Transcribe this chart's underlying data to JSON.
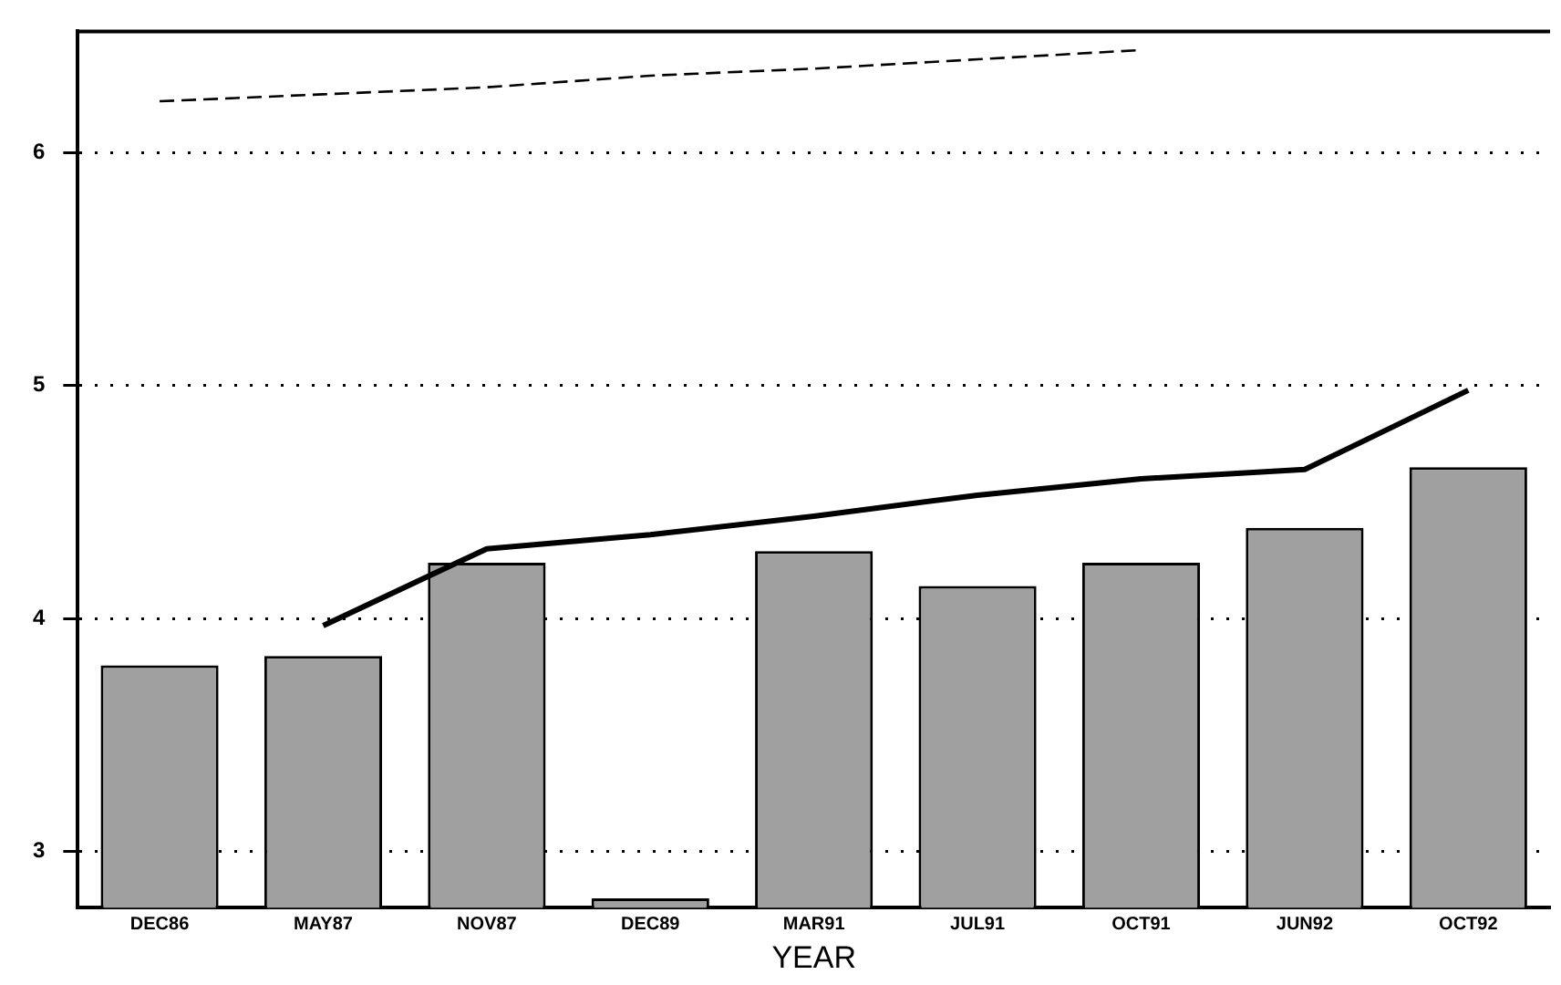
{
  "chart_data": {
    "type": "bar",
    "xlabel": "YEAR",
    "categories": [
      "DEC86",
      "MAY87",
      "NOV87",
      "DEC89",
      "MAR91",
      "JUL91",
      "OCT91",
      "JUN92",
      "OCT92"
    ],
    "series": [
      {
        "color": "#a0a0a0",
        "values": [
          3.8,
          3.84,
          4.24,
          2.8,
          4.29,
          4.14,
          4.24,
          4.39,
          4.65
        ]
      },
      {
        "type": "line",
        "color": "#000000",
        "line_style": "solid",
        "values": [
          null,
          3.97,
          4.3,
          4.36,
          4.44,
          4.53,
          4.6,
          4.64,
          4.98
        ]
      },
      {
        "type": "line",
        "color": "#000000",
        "line_style": "dashed",
        "values": [
          6.22,
          6.25,
          6.28,
          6.33,
          6.36,
          6.4,
          6.44,
          null,
          null
        ]
      }
    ],
    "ylim": [
      2.76,
      6.52
    ],
    "yticks": [
      3,
      4,
      5,
      6
    ],
    "grid": "y",
    "marker": "none"
  }
}
